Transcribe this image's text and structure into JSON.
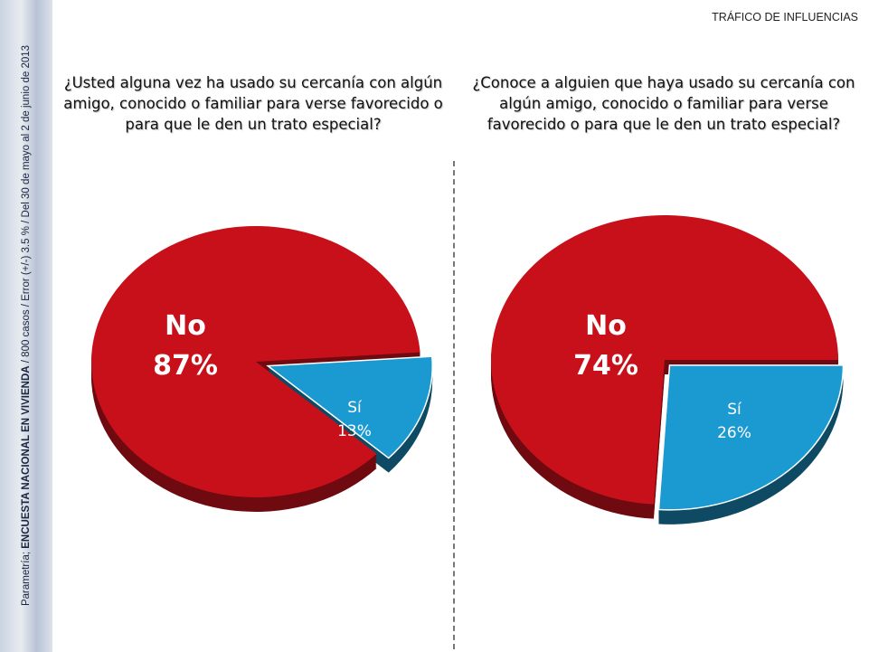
{
  "sidebar": {
    "source": "Parametría;",
    "survey": "ENCUESTA NACIONAL EN VIVIENDA",
    "details": "/ 800 casos / Error (+/-) 3.5 % / Del 30 de mayo al 2  de junio de 2013"
  },
  "header": {
    "section": "TRÁFICO DE INFLUENCIAS"
  },
  "colors": {
    "no": "#c8101a",
    "no_dark": "#6e0a10",
    "si": "#1a9ad0",
    "si_dark": "#0e4a64"
  },
  "chart_data": [
    {
      "type": "pie",
      "title": "¿Usted alguna vez ha usado su cercanía con algún amigo, conocido o familiar para verse favorecido o para que le den un trato especial?",
      "slices": [
        {
          "label": "No",
          "value": 87,
          "display": "87%"
        },
        {
          "label": "Sí",
          "value": 13,
          "display": "13%"
        }
      ]
    },
    {
      "type": "pie",
      "title": "¿Conoce a alguien que haya usado su cercanía con algún amigo, conocido o familiar para verse favorecido o para que le den un trato especial?",
      "slices": [
        {
          "label": "No",
          "value": 74,
          "display": "74%"
        },
        {
          "label": "Sí",
          "value": 26,
          "display": "26%"
        }
      ]
    }
  ]
}
